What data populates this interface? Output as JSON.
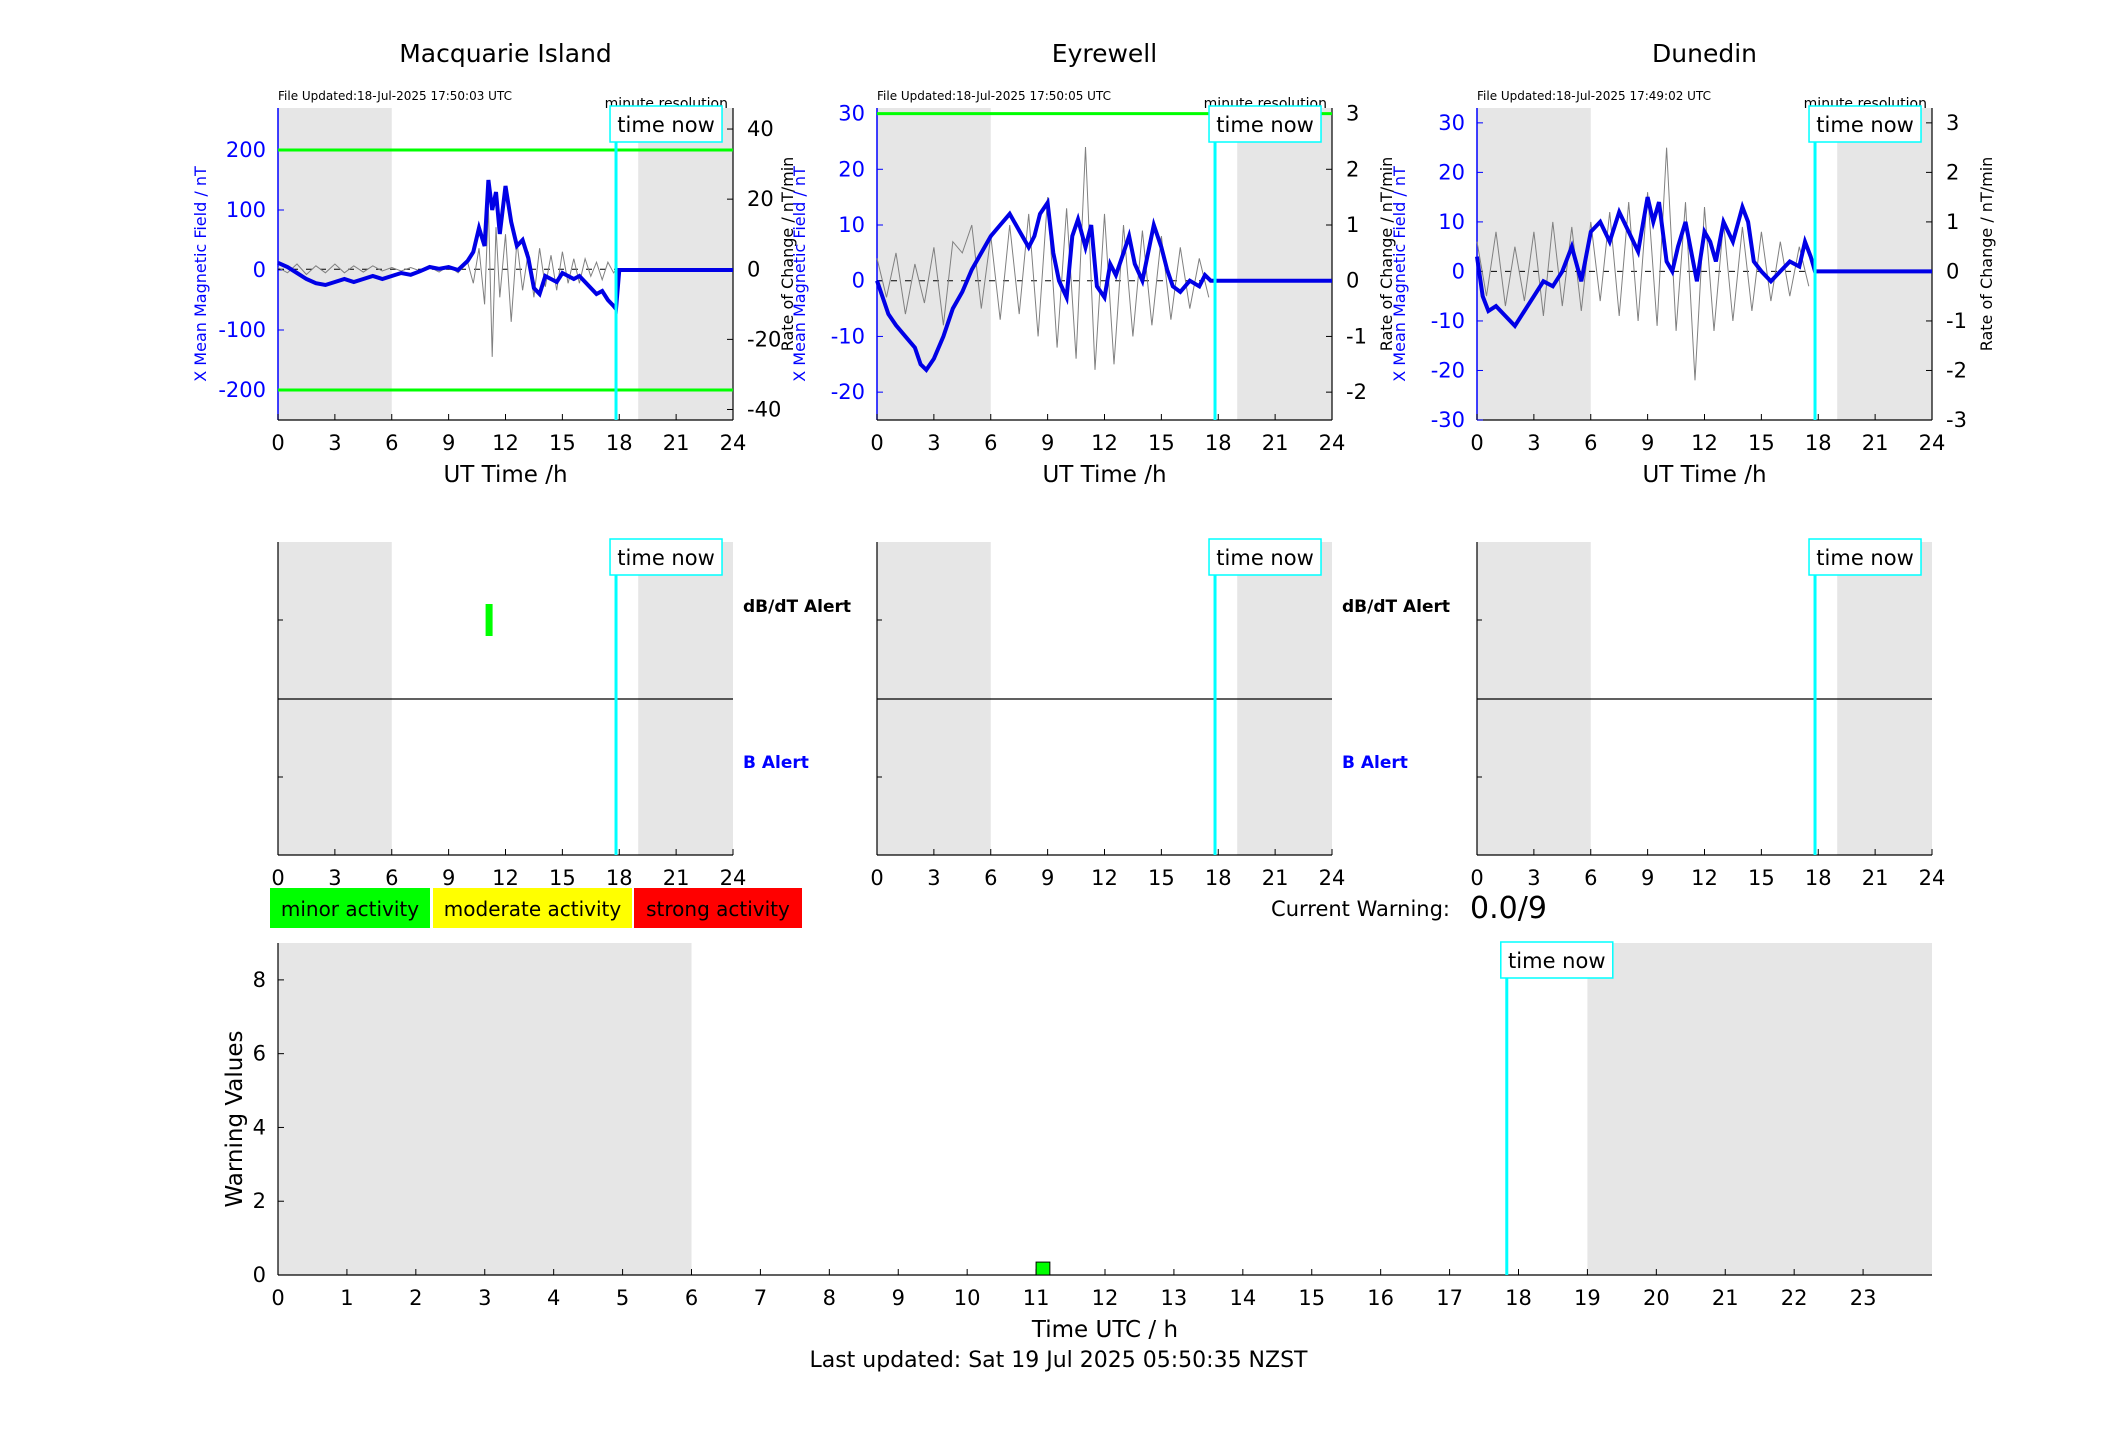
{
  "footer": {
    "last_updated": "Last updated: Sat 19 Jul 2025 05:50:35 NZST"
  },
  "labels": {
    "time_now": "time now",
    "minute_resolution": "minute resolution",
    "dbdt_alert": "dB/dT Alert",
    "b_alert": "B Alert",
    "current_warning_label": "Current Warning:",
    "current_warning_value": "0.0/9"
  },
  "legend": [
    {
      "label": "minor activity",
      "color": "#00ff00"
    },
    {
      "label": "moderate activity",
      "color": "#ffff00"
    },
    {
      "label": "strong activity",
      "color": "#ff0000"
    }
  ],
  "colors": {
    "field_line": "#0000e6",
    "rate_line": "#808080",
    "threshold_line": "#00ff00",
    "time_now_line": "#00ffff",
    "night_shade": "#e6e6e6",
    "alert_bar": "#00ff00"
  },
  "chart_data": [
    {
      "type": "line",
      "title": "Macquarie Island",
      "file_updated": "File Updated:18-Jul-2025 17:50:03 UTC",
      "xlabel": "UT Time /h",
      "ylabel": "X Mean Magnetic Field / nT",
      "ylabel_right": "Rate of Change / nT/min",
      "xlim": [
        0,
        24
      ],
      "xticks": [
        0,
        3,
        6,
        9,
        12,
        15,
        18,
        21,
        24
      ],
      "ylim": [
        -250,
        270
      ],
      "yticks": [
        -200,
        -100,
        0,
        100,
        200
      ],
      "ylim_right": [
        -43,
        46
      ],
      "yticks_right": [
        -40,
        -20,
        0,
        20,
        40
      ],
      "thresholds": [
        200,
        -200
      ],
      "night_shading": [
        [
          0,
          6
        ],
        [
          19,
          24
        ]
      ],
      "time_now": 17.83,
      "series": [
        {
          "axis": "right",
          "x": [
            0,
            0.5,
            1,
            1.5,
            2,
            2.5,
            3,
            3.5,
            4,
            4.5,
            5,
            5.5,
            6,
            6.5,
            7,
            7.5,
            8,
            8.5,
            9,
            9.5,
            10,
            10.3,
            10.6,
            10.9,
            11.1,
            11.3,
            11.5,
            11.7,
            12,
            12.3,
            12.6,
            12.9,
            13.2,
            13.5,
            13.8,
            14.1,
            14.4,
            14.7,
            15,
            15.3,
            15.6,
            15.9,
            16.2,
            16.5,
            16.8,
            17.1,
            17.4,
            17.7,
            17.83
          ],
          "y": [
            0.5,
            -1,
            1.5,
            -1.5,
            1,
            -1,
            1.5,
            -1,
            1,
            -0.8,
            1,
            -0.5,
            0.5,
            -0.5,
            0.5,
            -0.5,
            0.6,
            -0.8,
            1,
            -1,
            2,
            -4,
            6,
            -10,
            18,
            -25,
            12,
            -8,
            10,
            -15,
            8,
            -6,
            5,
            -8,
            6,
            -5,
            4,
            -6,
            5,
            -4,
            3,
            -4,
            3,
            -2,
            2,
            -3,
            2,
            -1,
            0
          ]
        },
        {
          "axis": "left",
          "x": [
            0,
            0.5,
            1,
            1.5,
            2,
            2.5,
            3,
            3.5,
            4,
            4.5,
            5,
            5.5,
            6,
            6.5,
            7,
            7.5,
            8,
            8.5,
            9,
            9.5,
            10,
            10.3,
            10.6,
            10.9,
            11.1,
            11.3,
            11.5,
            11.7,
            12,
            12.3,
            12.6,
            12.9,
            13.2,
            13.5,
            13.8,
            14.1,
            14.4,
            14.7,
            15,
            15.3,
            15.6,
            15.9,
            16.2,
            16.5,
            16.8,
            17.1,
            17.4,
            17.7,
            17.83,
            18,
            20,
            22,
            24
          ],
          "y": [
            12,
            5,
            -5,
            -15,
            -22,
            -25,
            -20,
            -15,
            -20,
            -15,
            -10,
            -15,
            -10,
            -5,
            -8,
            -2,
            5,
            2,
            5,
            0,
            15,
            30,
            70,
            40,
            150,
            100,
            130,
            60,
            140,
            80,
            40,
            50,
            20,
            -30,
            -40,
            -10,
            -15,
            -20,
            -5,
            -10,
            -15,
            -10,
            -20,
            -30,
            -40,
            -35,
            -50,
            -60,
            -65,
            0,
            0,
            0,
            0
          ]
        }
      ]
    },
    {
      "type": "line",
      "title": "Eyrewell",
      "file_updated": "File Updated:18-Jul-2025 17:50:05 UTC",
      "xlabel": "UT Time /h",
      "ylabel": "X Mean Magnetic Field / nT",
      "ylabel_right": "Rate of Change / nT/min",
      "xlim": [
        0,
        24
      ],
      "xticks": [
        0,
        3,
        6,
        9,
        12,
        15,
        18,
        21,
        24
      ],
      "ylim": [
        -25,
        31
      ],
      "yticks": [
        -20,
        -10,
        0,
        10,
        20,
        30
      ],
      "ylim_right": [
        -2.5,
        3.1
      ],
      "yticks_right": [
        -2,
        -1,
        0,
        1,
        2,
        3
      ],
      "thresholds": [
        30
      ],
      "night_shading": [
        [
          0,
          6
        ],
        [
          19,
          24
        ]
      ],
      "time_now": 17.83,
      "series": [
        {
          "axis": "right",
          "x": [
            0,
            0.5,
            1,
            1.5,
            2,
            2.5,
            3,
            3.5,
            4,
            4.5,
            5,
            5.5,
            6,
            6.5,
            7,
            7.5,
            8,
            8.5,
            9,
            9.5,
            10,
            10.5,
            11,
            11.5,
            12,
            12.5,
            13,
            13.5,
            14,
            14.5,
            15,
            15.5,
            16,
            16.5,
            17,
            17.5
          ],
          "y": [
            0.4,
            -0.3,
            0.5,
            -0.6,
            0.3,
            -0.4,
            0.6,
            -0.8,
            0.7,
            0.5,
            1,
            -0.5,
            0.8,
            -0.7,
            1,
            -0.6,
            1.2,
            -1,
            1.5,
            -1.2,
            1.3,
            -1.4,
            2.4,
            -1.6,
            1.2,
            -1.5,
            1,
            -1,
            0.9,
            -0.8,
            0.8,
            -0.7,
            0.6,
            -0.5,
            0.4,
            -0.3
          ]
        },
        {
          "axis": "left",
          "x": [
            0,
            0.3,
            0.6,
            1,
            1.5,
            2,
            2.3,
            2.6,
            3,
            3.5,
            4,
            4.5,
            5,
            5.5,
            6,
            6.5,
            7,
            7.5,
            8,
            8.3,
            8.6,
            9,
            9.3,
            9.6,
            10,
            10.3,
            10.6,
            11,
            11.3,
            11.6,
            12,
            12.3,
            12.6,
            13,
            13.3,
            13.6,
            14,
            14.3,
            14.6,
            15,
            15.3,
            15.6,
            16,
            16.5,
            17,
            17.3,
            17.6,
            17.83,
            18,
            20,
            22,
            24
          ],
          "y": [
            0,
            -3,
            -6,
            -8,
            -10,
            -12,
            -15,
            -16,
            -14,
            -10,
            -5,
            -2,
            2,
            5,
            8,
            10,
            12,
            9,
            6,
            8,
            12,
            14,
            5,
            0,
            -3,
            8,
            11,
            6,
            10,
            -1,
            -3,
            3,
            1,
            5,
            8,
            3,
            0,
            5,
            10,
            6,
            2,
            -1,
            -2,
            0,
            -1,
            1,
            0,
            0,
            0,
            0,
            0,
            0
          ]
        }
      ]
    },
    {
      "type": "line",
      "title": "Dunedin",
      "file_updated": "File Updated:18-Jul-2025 17:49:02 UTC",
      "xlabel": "UT Time /h",
      "ylabel": "X Mean Magnetic Field / nT",
      "ylabel_right": "Rate of Change / nT/min",
      "xlim": [
        0,
        24
      ],
      "xticks": [
        0,
        3,
        6,
        9,
        12,
        15,
        18,
        21,
        24
      ],
      "ylim": [
        -30,
        33
      ],
      "yticks": [
        -30,
        -20,
        -10,
        0,
        10,
        20,
        30
      ],
      "ylim_right": [
        -3,
        3.3
      ],
      "yticks_right": [
        -3,
        -2,
        -1,
        0,
        1,
        2,
        3
      ],
      "thresholds": [],
      "night_shading": [
        [
          0,
          6
        ],
        [
          19,
          24
        ]
      ],
      "time_now": 17.83,
      "series": [
        {
          "axis": "right",
          "x": [
            0,
            0.5,
            1,
            1.5,
            2,
            2.5,
            3,
            3.5,
            4,
            4.5,
            5,
            5.5,
            6,
            6.5,
            7,
            7.5,
            8,
            8.5,
            9,
            9.5,
            10,
            10.5,
            11,
            11.5,
            12,
            12.5,
            13,
            13.5,
            14,
            14.5,
            15,
            15.5,
            16,
            16.5,
            17,
            17.5
          ],
          "y": [
            0.6,
            -0.5,
            0.8,
            -0.7,
            0.5,
            -0.6,
            0.8,
            -0.9,
            1,
            -0.7,
            0.9,
            -0.8,
            1,
            -0.6,
            1.2,
            -0.9,
            1.4,
            -1,
            1.6,
            -1.1,
            2.5,
            -1.2,
            1.4,
            -2.2,
            1.3,
            -1.2,
            1,
            -1,
            0.9,
            -0.8,
            0.8,
            -0.6,
            0.6,
            -0.5,
            0.5,
            -0.3
          ]
        },
        {
          "axis": "left",
          "x": [
            0,
            0.3,
            0.6,
            1,
            1.5,
            2,
            2.5,
            3,
            3.5,
            4,
            4.5,
            5,
            5.5,
            6,
            6.5,
            7,
            7.5,
            8,
            8.5,
            9,
            9.3,
            9.6,
            10,
            10.3,
            10.6,
            11,
            11.3,
            11.6,
            12,
            12.3,
            12.6,
            13,
            13.5,
            14,
            14.3,
            14.6,
            15,
            15.5,
            16,
            16.5,
            17,
            17.3,
            17.6,
            17.83,
            18,
            20,
            22,
            24
          ],
          "y": [
            3,
            -5,
            -8,
            -7,
            -9,
            -11,
            -8,
            -5,
            -2,
            -3,
            0,
            5,
            -2,
            8,
            10,
            6,
            12,
            8,
            4,
            15,
            10,
            14,
            2,
            0,
            5,
            10,
            4,
            -2,
            8,
            6,
            2,
            10,
            6,
            13,
            10,
            2,
            0,
            -2,
            0,
            2,
            1,
            6,
            3,
            0,
            0,
            0,
            0,
            0
          ]
        }
      ]
    },
    {
      "type": "bar",
      "title": "",
      "xlim": [
        0,
        24
      ],
      "xticks": [
        0,
        3,
        6,
        9,
        12,
        15,
        18,
        21,
        24
      ],
      "rows": [
        "dB/dT Alert",
        "B Alert"
      ],
      "night_shading": [
        [
          0,
          6
        ],
        [
          19,
          24
        ]
      ],
      "time_now": 17.83,
      "alerts": [
        {
          "row": "dB/dT Alert",
          "start": 10.95,
          "end": 11.25,
          "level": "minor activity"
        }
      ]
    },
    {
      "type": "bar",
      "title": "",
      "xlim": [
        0,
        24
      ],
      "xticks": [
        0,
        3,
        6,
        9,
        12,
        15,
        18,
        21,
        24
      ],
      "rows": [
        "dB/dT Alert",
        "B Alert"
      ],
      "night_shading": [
        [
          0,
          6
        ],
        [
          19,
          24
        ]
      ],
      "time_now": 17.83,
      "alerts": []
    },
    {
      "type": "bar",
      "title": "",
      "xlim": [
        0,
        24
      ],
      "xticks": [
        0,
        3,
        6,
        9,
        12,
        15,
        18,
        21,
        24
      ],
      "rows": [
        "dB/dT Alert",
        "B Alert"
      ],
      "night_shading": [
        [
          0,
          6
        ],
        [
          19,
          24
        ]
      ],
      "time_now": 17.83,
      "alerts": []
    },
    {
      "type": "bar",
      "title": "",
      "xlabel": "Time UTC / h",
      "ylabel": "Warning Values",
      "xlim": [
        0,
        24
      ],
      "xticks": [
        0,
        1,
        2,
        3,
        4,
        5,
        6,
        7,
        8,
        9,
        10,
        11,
        12,
        13,
        14,
        15,
        16,
        17,
        18,
        19,
        20,
        21,
        22,
        23
      ],
      "ylim": [
        0,
        9
      ],
      "yticks": [
        0,
        2,
        4,
        6,
        8
      ],
      "night_shading": [
        [
          0,
          6
        ],
        [
          19,
          24
        ]
      ],
      "time_now": 17.83,
      "bars": [
        {
          "start": 11.0,
          "end": 11.2,
          "value": 0.35,
          "level": "minor activity"
        }
      ]
    }
  ]
}
